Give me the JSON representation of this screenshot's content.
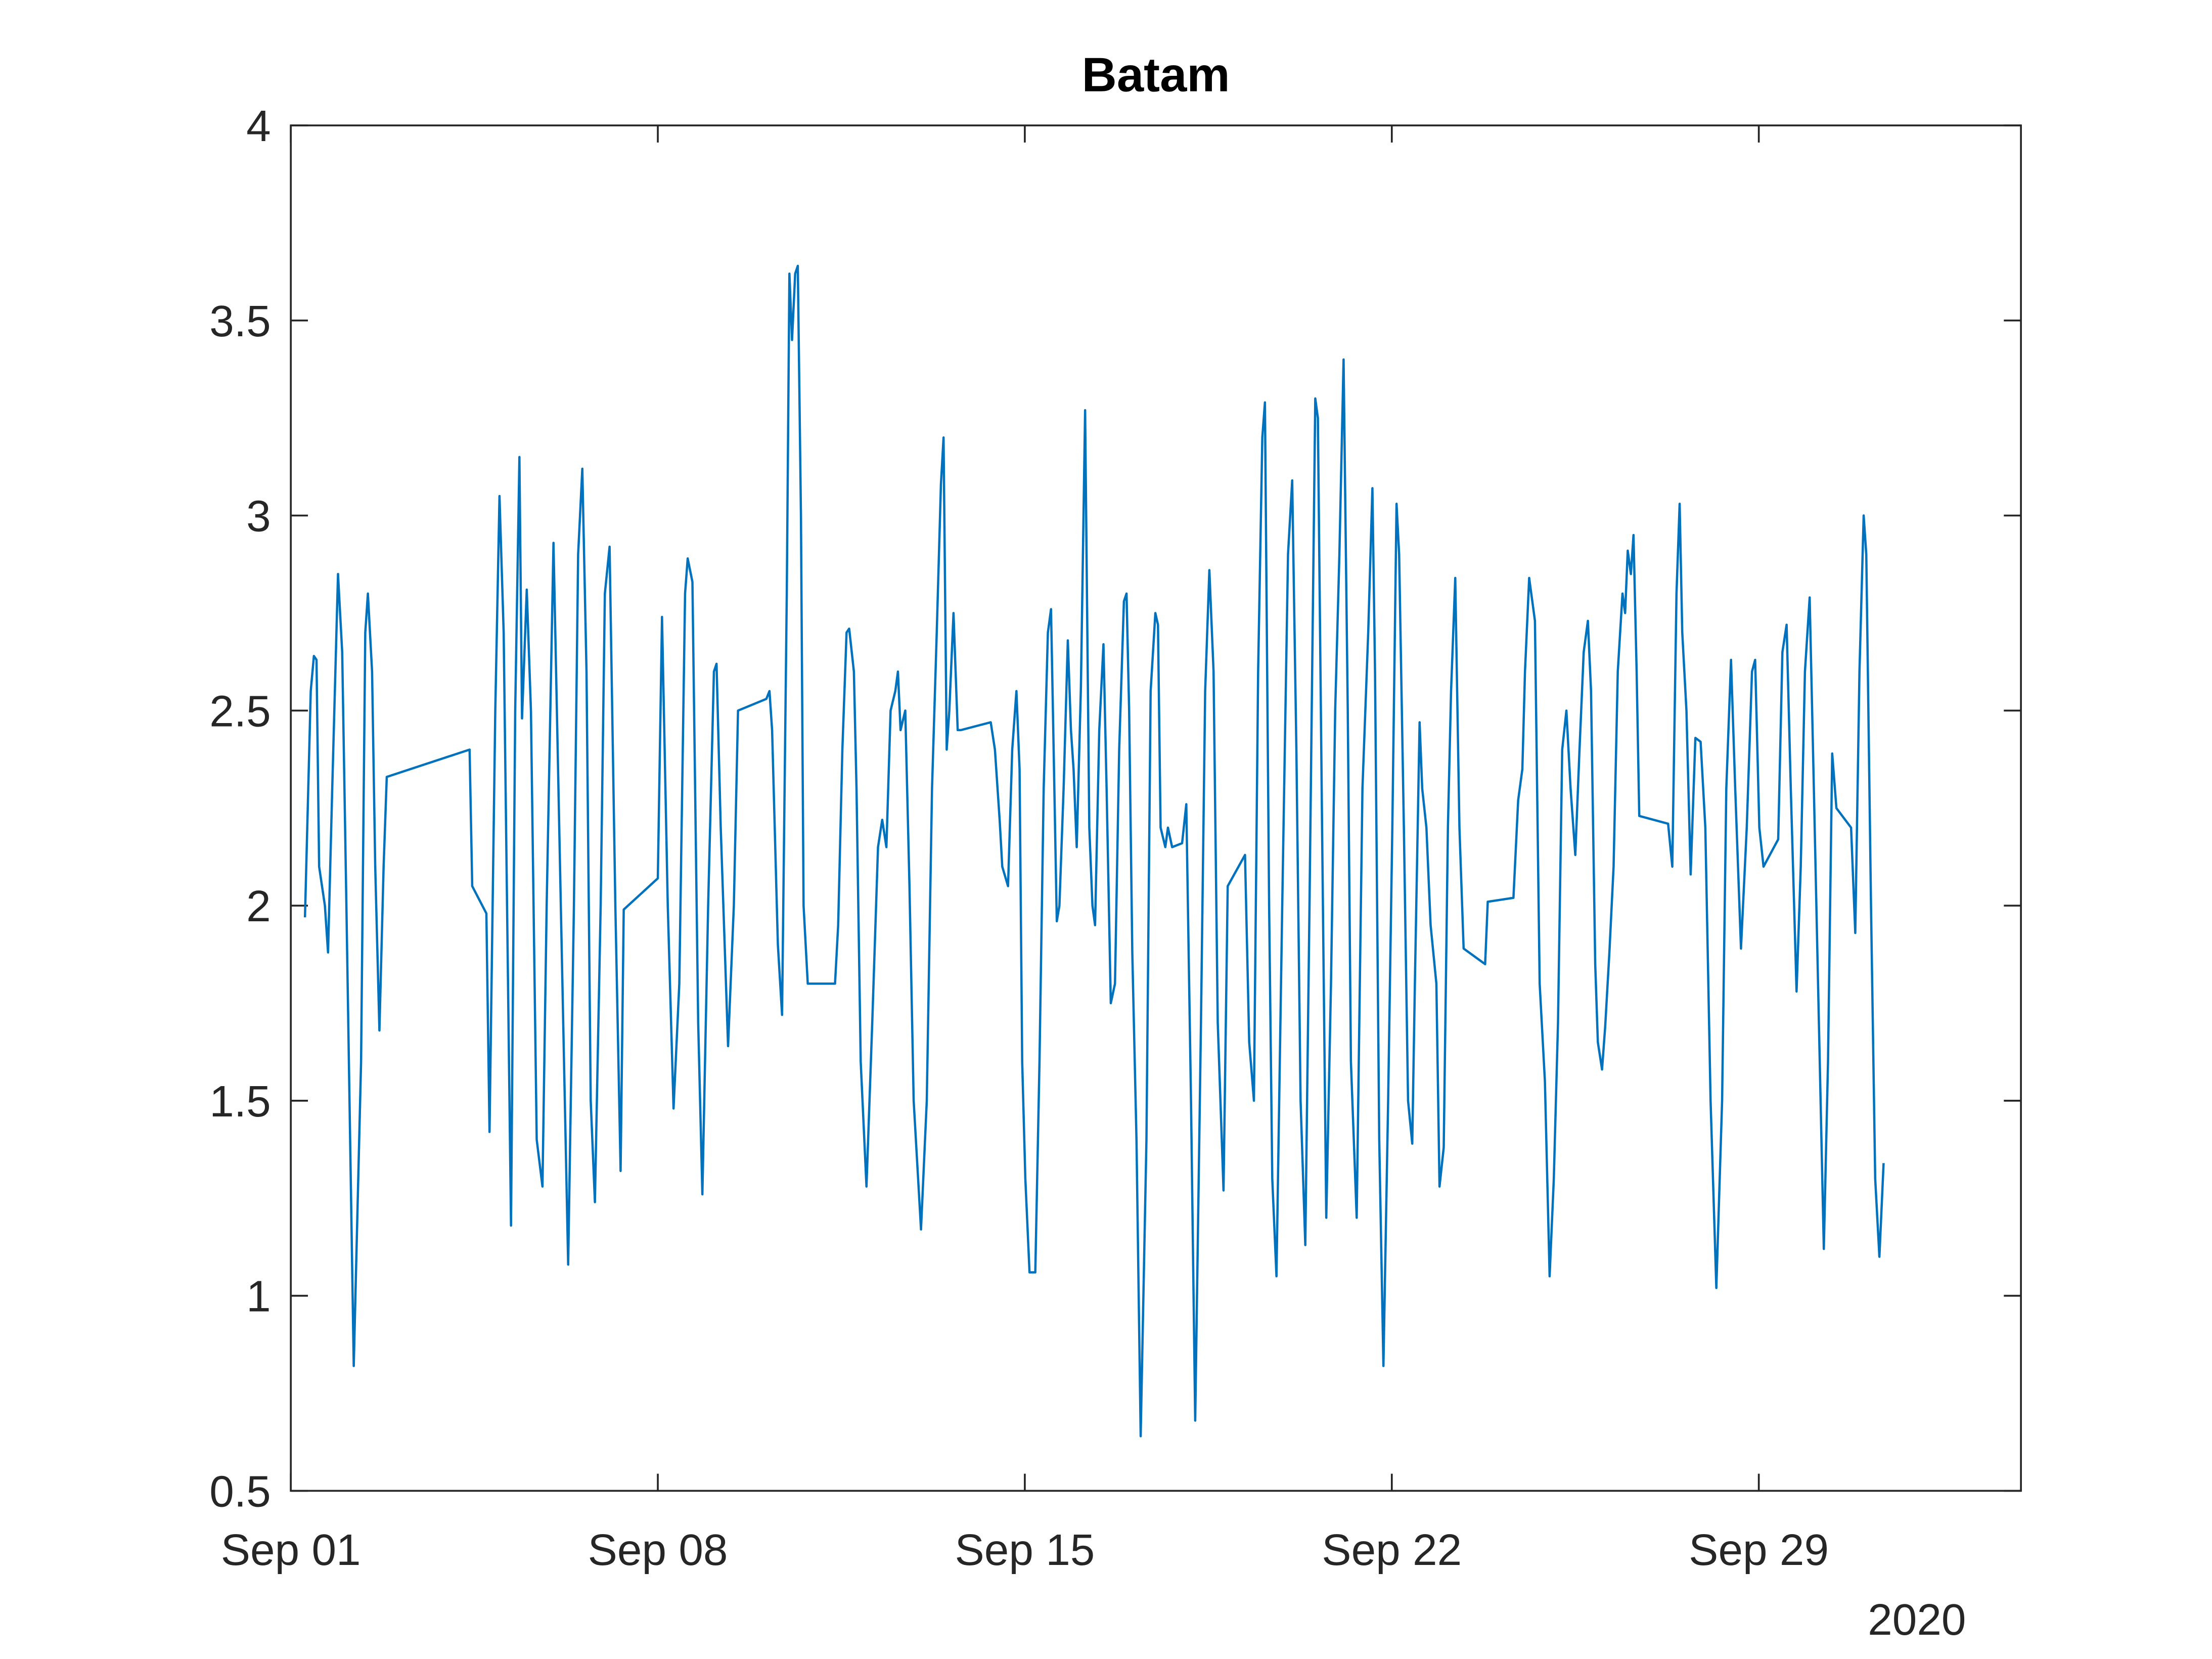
{
  "chart_data": {
    "type": "line",
    "title": "Batam",
    "x": [
      1.27,
      1.38,
      1.44,
      1.49,
      1.54,
      1.65,
      1.71,
      1.79,
      1.9,
      1.98,
      2.06,
      2.2,
      2.34,
      2.42,
      2.47,
      2.55,
      2.61,
      2.69,
      2.77,
      2.83,
      4.41,
      4.46,
      4.73,
      4.79,
      4.9,
      4.98,
      5.06,
      5.2,
      5.28,
      5.36,
      5.41,
      5.5,
      5.58,
      5.69,
      5.8,
      5.88,
      6.01,
      6.15,
      6.29,
      6.4,
      6.48,
      6.56,
      6.64,
      6.72,
      6.8,
      6.91,
      6.99,
      7.08,
      7.19,
      7.29,
      7.35,
      8.0,
      8.08,
      8.19,
      8.3,
      8.41,
      8.52,
      8.57,
      8.66,
      8.77,
      8.85,
      8.96,
      9.07,
      9.12,
      9.2,
      9.34,
      9.45,
      9.53,
      10.07,
      10.13,
      10.18,
      10.29,
      10.37,
      10.46,
      10.51,
      10.56,
      10.62,
      10.67,
      10.73,
      10.78,
      10.86,
      11.38,
      11.44,
      11.52,
      11.6,
      11.65,
      11.74,
      11.79,
      11.87,
      11.98,
      12.09,
      12.2,
      12.28,
      12.36,
      12.44,
      12.53,
      12.58,
      12.63,
      12.72,
      12.8,
      12.88,
      13.02,
      13.13,
      13.23,
      13.32,
      13.4,
      13.45,
      13.51,
      13.56,
      13.64,
      13.72,
      13.78,
      14.35,
      14.43,
      14.52,
      14.57,
      14.68,
      14.76,
      14.84,
      14.9,
      14.95,
      15.01,
      15.09,
      15.2,
      15.28,
      15.36,
      15.44,
      15.5,
      15.55,
      15.61,
      15.66,
      15.74,
      15.82,
      15.88,
      15.93,
      15.99,
      16.07,
      16.15,
      16.23,
      16.29,
      16.34,
      16.42,
      16.5,
      16.56,
      16.64,
      16.72,
      16.8,
      16.89,
      16.94,
      16.99,
      17.05,
      17.13,
      17.21,
      17.32,
      17.4,
      17.49,
      17.54,
      17.59,
      17.68,
      17.73,
      17.81,
      18.0,
      18.08,
      18.17,
      18.25,
      18.36,
      18.44,
      18.52,
      18.6,
      18.68,
      18.79,
      18.87,
      19.2,
      19.28,
      19.37,
      19.45,
      19.53,
      19.58,
      19.66,
      19.72,
      19.8,
      19.91,
      20.02,
      20.1,
      20.18,
      20.26,
      20.35,
      20.43,
      20.54,
      20.59,
      20.67,
      20.75,
      20.84,
      20.92,
      21.0,
      21.08,
      21.16,
      21.22,
      21.33,
      21.44,
      21.55,
      21.63,
      21.68,
      21.76,
      21.84,
      21.93,
      22.01,
      22.09,
      22.14,
      22.23,
      22.31,
      22.39,
      22.44,
      22.53,
      22.58,
      22.66,
      22.74,
      22.85,
      22.91,
      22.99,
      23.07,
      23.13,
      23.21,
      23.29,
      23.37,
      23.78,
      23.83,
      24.32,
      24.41,
      24.49,
      24.54,
      24.62,
      24.73,
      24.82,
      24.92,
      25.01,
      25.09,
      25.17,
      25.25,
      25.33,
      25.41,
      25.5,
      25.58,
      25.66,
      25.74,
      25.8,
      25.88,
      25.93,
      26.01,
      26.07,
      26.15,
      26.23,
      26.31,
      26.4,
      26.45,
      26.5,
      26.56,
      26.61,
      26.67,
      26.72,
      27.27,
      27.35,
      27.43,
      27.49,
      27.54,
      27.62,
      27.7,
      27.79,
      27.89,
      27.98,
      28.08,
      28.19,
      28.3,
      28.38,
      28.47,
      28.55,
      28.66,
      28.77,
      28.87,
      28.93,
      29.01,
      29.09,
      29.37,
      29.45,
      29.53,
      29.61,
      29.72,
      29.8,
      29.88,
      29.97,
      30.05,
      30.13,
      30.24,
      30.32,
      30.4,
      30.48,
      30.76,
      30.84,
      30.92,
      31.0,
      31.05,
      31.14,
      31.22,
      31.3,
      31.38
    ],
    "series": [
      {
        "color": "#0072bd",
        "values": [
          1.97,
          2.55,
          2.64,
          2.63,
          2.1,
          2.0,
          1.88,
          2.3,
          2.85,
          2.65,
          2.0,
          0.82,
          1.6,
          2.7,
          2.8,
          2.6,
          2.1,
          1.68,
          2.1,
          2.33,
          2.4,
          2.05,
          1.98,
          1.42,
          2.5,
          3.05,
          2.7,
          1.18,
          2.5,
          3.15,
          2.48,
          2.81,
          2.5,
          1.4,
          1.28,
          2.0,
          2.93,
          2.0,
          1.08,
          2.0,
          2.9,
          3.12,
          2.6,
          1.5,
          1.24,
          2.0,
          2.8,
          2.92,
          2.0,
          1.32,
          1.99,
          2.07,
          2.74,
          2.0,
          1.48,
          1.8,
          2.8,
          2.89,
          2.83,
          1.7,
          1.26,
          2.0,
          2.6,
          2.62,
          2.2,
          1.64,
          2.0,
          2.5,
          2.53,
          2.55,
          2.45,
          1.9,
          1.72,
          2.8,
          3.62,
          3.45,
          3.62,
          3.64,
          3.0,
          2.0,
          1.8,
          1.8,
          1.95,
          2.4,
          2.7,
          2.71,
          2.6,
          2.3,
          1.6,
          1.28,
          1.7,
          2.15,
          2.22,
          2.15,
          2.5,
          2.55,
          2.6,
          2.45,
          2.5,
          2.05,
          1.5,
          1.17,
          1.5,
          2.3,
          2.7,
          3.08,
          3.2,
          2.4,
          2.5,
          2.75,
          2.45,
          2.45,
          2.47,
          2.4,
          2.22,
          2.1,
          2.05,
          2.4,
          2.55,
          2.35,
          1.6,
          1.3,
          1.06,
          1.06,
          1.6,
          2.3,
          2.7,
          2.76,
          2.4,
          1.96,
          2.0,
          2.3,
          2.68,
          2.45,
          2.35,
          2.15,
          2.56,
          3.27,
          2.2,
          2.0,
          1.95,
          2.45,
          2.67,
          2.3,
          1.75,
          1.8,
          2.4,
          2.78,
          2.8,
          2.5,
          1.88,
          1.4,
          0.64,
          1.4,
          2.55,
          2.75,
          2.72,
          2.2,
          2.15,
          2.2,
          2.15,
          2.16,
          2.26,
          1.5,
          0.68,
          1.7,
          2.55,
          2.86,
          2.6,
          1.7,
          1.27,
          2.05,
          2.13,
          1.65,
          1.5,
          2.6,
          3.2,
          3.29,
          2.0,
          1.3,
          1.05,
          2.0,
          2.9,
          3.09,
          2.4,
          1.5,
          1.13,
          2.0,
          3.3,
          3.25,
          2.2,
          1.2,
          1.8,
          2.5,
          2.9,
          3.4,
          2.5,
          1.6,
          1.2,
          2.3,
          2.7,
          3.07,
          2.6,
          1.4,
          0.82,
          1.5,
          2.2,
          3.03,
          2.9,
          2.2,
          1.5,
          1.39,
          1.8,
          2.47,
          2.3,
          2.2,
          1.95,
          1.8,
          1.28,
          1.38,
          2.2,
          2.55,
          2.84,
          2.2,
          1.89,
          1.85,
          2.01,
          2.02,
          2.27,
          2.35,
          2.6,
          2.84,
          2.73,
          1.8,
          1.55,
          1.05,
          1.3,
          1.7,
          2.4,
          2.5,
          2.3,
          2.13,
          2.4,
          2.65,
          2.73,
          2.55,
          1.85,
          1.65,
          1.58,
          1.69,
          1.88,
          2.1,
          2.6,
          2.8,
          2.75,
          2.91,
          2.85,
          2.95,
          2.6,
          2.23,
          2.21,
          2.1,
          2.8,
          3.03,
          2.7,
          2.5,
          2.08,
          2.43,
          2.42,
          2.2,
          1.5,
          1.02,
          1.5,
          2.3,
          2.63,
          2.3,
          1.89,
          2.2,
          2.6,
          2.63,
          2.2,
          2.1,
          2.17,
          2.65,
          2.72,
          2.3,
          1.78,
          2.1,
          2.6,
          2.79,
          2.3,
          1.8,
          1.12,
          1.6,
          2.39,
          2.25,
          2.2,
          1.93,
          2.6,
          3.0,
          2.9,
          2.0,
          1.3,
          1.1,
          1.34
        ]
      }
    ],
    "xlim": [
      1,
      34
    ],
    "xticks": [
      {
        "value": 1,
        "label": "Sep 01"
      },
      {
        "value": 8,
        "label": "Sep 08"
      },
      {
        "value": 15,
        "label": "Sep 15"
      },
      {
        "value": 22,
        "label": "Sep 22"
      },
      {
        "value": 29,
        "label": "Sep 29"
      }
    ],
    "x_year_label": "2020",
    "ylim": [
      0.5,
      4
    ],
    "yticks": [
      0.5,
      1,
      1.5,
      2,
      2.5,
      3,
      3.5,
      4
    ],
    "grid": false
  }
}
